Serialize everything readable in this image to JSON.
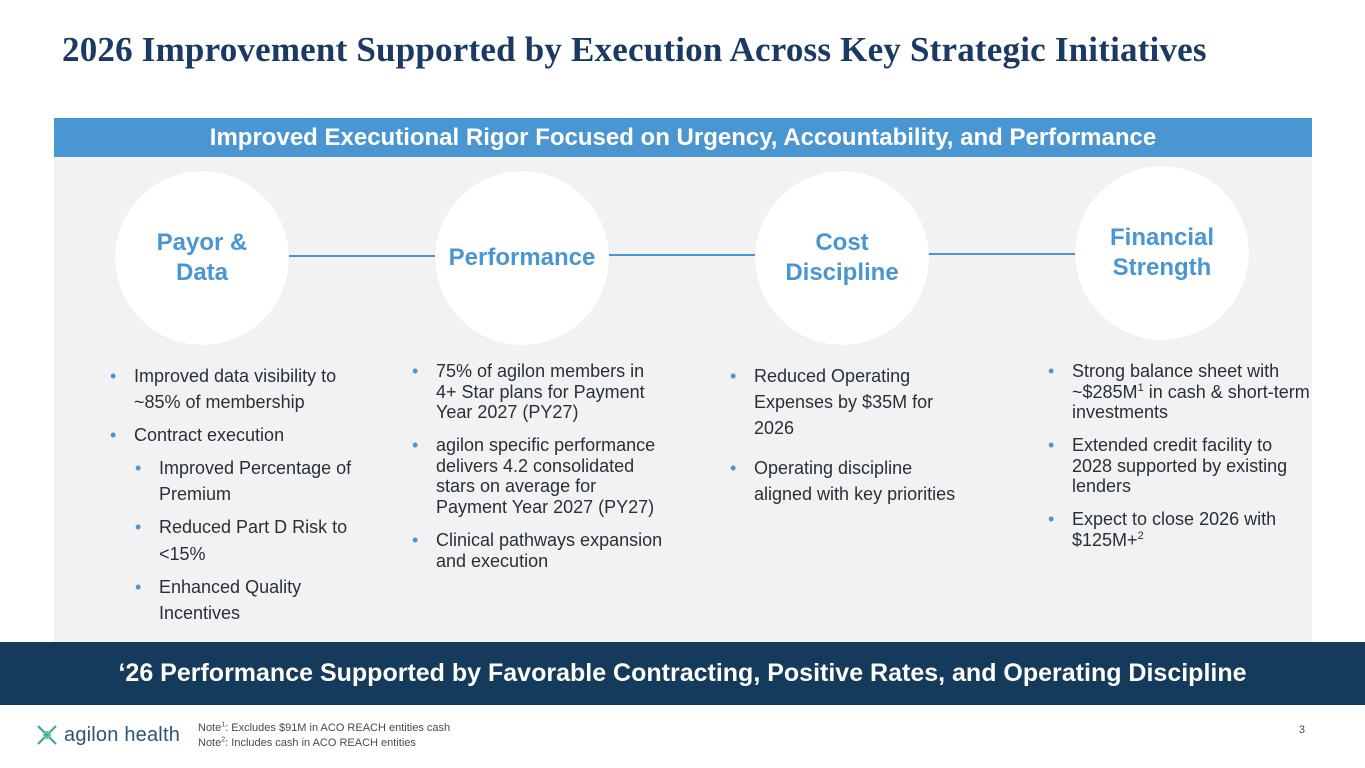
{
  "slide": {
    "title": "2026 Improvement Supported by Execution Across Key Strategic Initiatives",
    "banner": "Improved Executional Rigor Focused on Urgency, Accountability, and Performance",
    "footer_banner": "‘26 Performance Supported by Favorable Contracting, Positive Rates, and Operating Discipline",
    "page_number": "3"
  },
  "pillars": [
    {
      "title": "Payor & Data",
      "bullets": [
        "Improved data visibility to ~85% of membership",
        "Contract execution"
      ],
      "sub_bullets": [
        "Improved Percentage of Premium",
        "Reduced Part D Risk to <15%",
        "Enhanced Quality Incentives"
      ]
    },
    {
      "title": "Performance",
      "bullets": [
        "75% of agilon members in 4+ Star plans for Payment Year 2027 (PY27)",
        "agilon specific performance delivers 4.2 consolidated stars on average for Payment Year 2027 (PY27)",
        "Clinical pathways expansion and execution"
      ]
    },
    {
      "title": "Cost Discipline",
      "bullets": [
        "Reduced Operating Expenses by $35M for 2026",
        "Operating discipline aligned with key priorities"
      ]
    },
    {
      "title": "Financial Strength",
      "bullet1_pre": "Strong balance sheet with ~$285M",
      "bullet1_sup": "1",
      "bullet1_post": " in cash & short-term investments",
      "bullet2": "Extended credit facility to 2028 supported by existing lenders",
      "bullet3_pre": "Expect to close 2026 with $125M+",
      "bullet3_sup": "2"
    }
  ],
  "notes": {
    "note1_label": "Note",
    "note1_sup": "1",
    "note1_text": ": Excludes $91M in ACO REACH entities cash",
    "note2_label": "Note",
    "note2_sup": "2",
    "note2_text": ": Includes cash in ACO REACH entities"
  },
  "logo": {
    "text": "agilon health",
    "icon": "agilon-logo-icon"
  },
  "colors": {
    "navy": "#1a3a63",
    "blue": "#4a96d2",
    "dark_bar": "#143a5c",
    "panel": "#f2f2f2"
  }
}
